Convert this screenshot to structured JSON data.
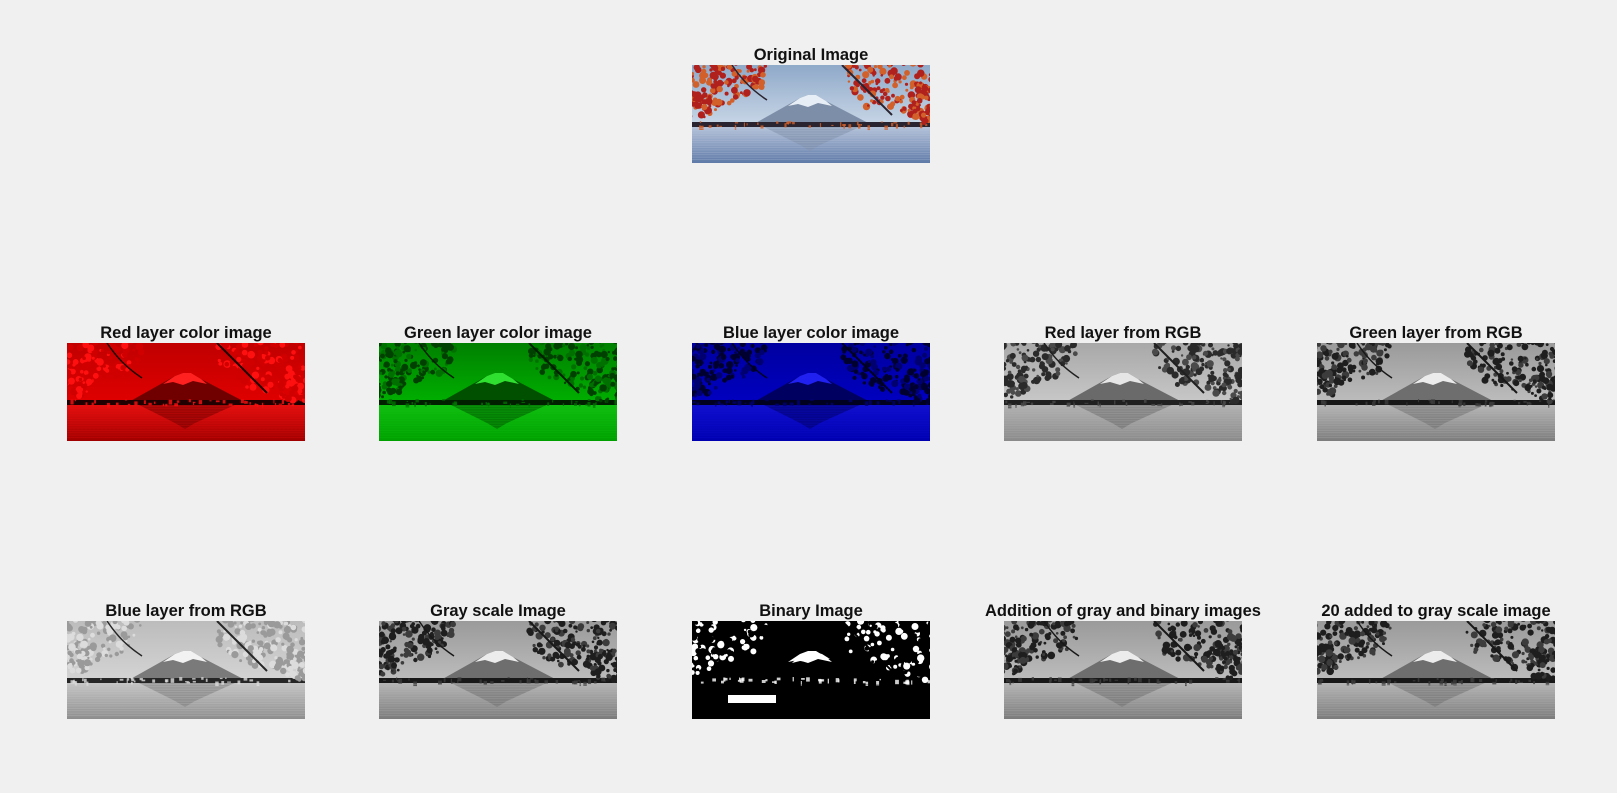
{
  "figure": {
    "panels": [
      {
        "id": "original",
        "title": "Original Image",
        "mode": "color"
      },
      {
        "id": "red-color",
        "title": "Red layer color image",
        "mode": "red"
      },
      {
        "id": "green-color",
        "title": "Green layer color image",
        "mode": "green"
      },
      {
        "id": "blue-color",
        "title": "Blue layer color image",
        "mode": "blue"
      },
      {
        "id": "red-gray",
        "title": "Red layer from RGB",
        "mode": "gray-dark"
      },
      {
        "id": "green-gray",
        "title": "Green layer from RGB",
        "mode": "gray"
      },
      {
        "id": "blue-gray",
        "title": "Blue layer from RGB",
        "mode": "gray-light"
      },
      {
        "id": "grayscale",
        "title": "Gray scale Image",
        "mode": "gray"
      },
      {
        "id": "binary",
        "title": "Binary Image",
        "mode": "binary"
      },
      {
        "id": "gray-plus-binary",
        "title": "Addition of gray and binary images",
        "mode": "gray"
      },
      {
        "id": "gray-plus-20",
        "title": "20 added to gray scale image",
        "mode": "gray"
      }
    ]
  }
}
